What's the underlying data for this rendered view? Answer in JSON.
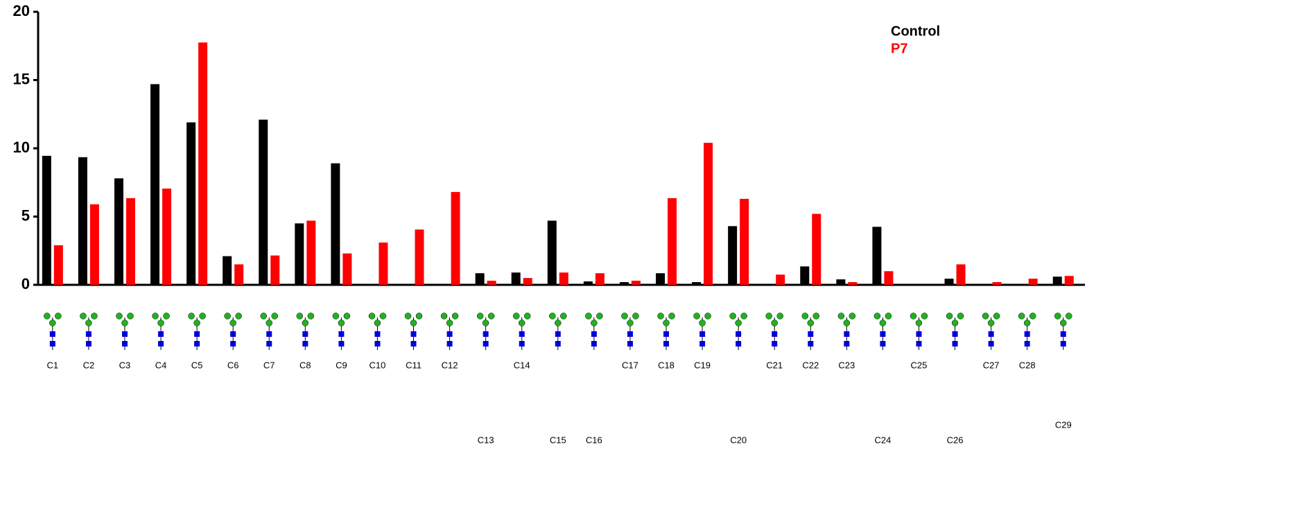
{
  "chart_data": {
    "type": "bar",
    "categories": [
      "C1",
      "C2",
      "C3",
      "C4",
      "C5",
      "C6",
      "C7",
      "C8",
      "C9",
      "C10",
      "C11",
      "C12",
      "C13",
      "C14",
      "C15",
      "C16",
      "C17",
      "C18",
      "C19",
      "C20",
      "C21",
      "C22",
      "C23",
      "C24",
      "C25",
      "C26",
      "C27",
      "C28",
      "C29"
    ],
    "series": [
      {
        "name": "Control",
        "color": "#000000",
        "values": [
          9.45,
          9.35,
          7.8,
          14.7,
          11.9,
          2.1,
          12.1,
          4.5,
          8.9,
          0,
          0,
          0,
          0.85,
          0.9,
          4.7,
          0.25,
          0.2,
          0.85,
          0.2,
          4.3,
          0,
          1.35,
          0.4,
          4.25,
          0,
          0.45,
          0,
          0,
          0.6
        ]
      },
      {
        "name": "P7",
        "color": "#ff0000",
        "values": [
          2.9,
          5.9,
          6.35,
          7.05,
          17.75,
          1.5,
          2.15,
          4.7,
          2.3,
          3.1,
          4.05,
          6.8,
          0.3,
          0.5,
          0.9,
          0.85,
          0.3,
          6.35,
          10.4,
          6.3,
          0.75,
          5.2,
          0.2,
          1.0,
          0,
          1.5,
          0.2,
          0.45,
          0.65
        ]
      }
    ],
    "ylim": [
      0,
      20
    ],
    "yticks": [
      0,
      5,
      10,
      15,
      20
    ],
    "grid": false,
    "legend": "top-right"
  }
}
